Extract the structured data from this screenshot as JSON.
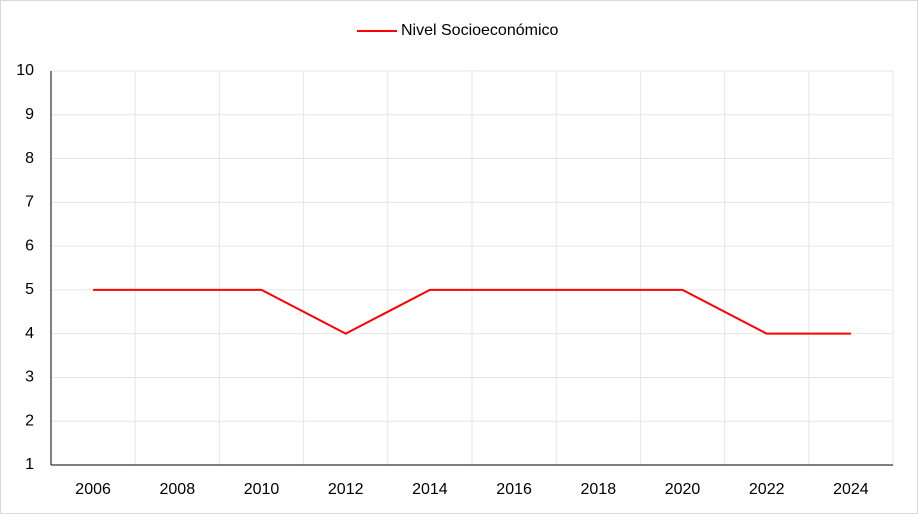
{
  "chart_data": {
    "type": "line",
    "categories": [
      "2006",
      "2008",
      "2010",
      "2012",
      "2014",
      "2016",
      "2018",
      "2020",
      "2022",
      "2024"
    ],
    "series": [
      {
        "name": "Nivel Socioeconómico",
        "color": "#ff0000",
        "values": [
          5,
          5,
          5,
          4,
          5,
          5,
          5,
          5,
          4,
          4
        ]
      }
    ],
    "ylim": [
      1,
      10
    ],
    "yticks": [
      1,
      2,
      3,
      4,
      5,
      6,
      7,
      8,
      9,
      10
    ],
    "grid": true,
    "legend": "top"
  }
}
